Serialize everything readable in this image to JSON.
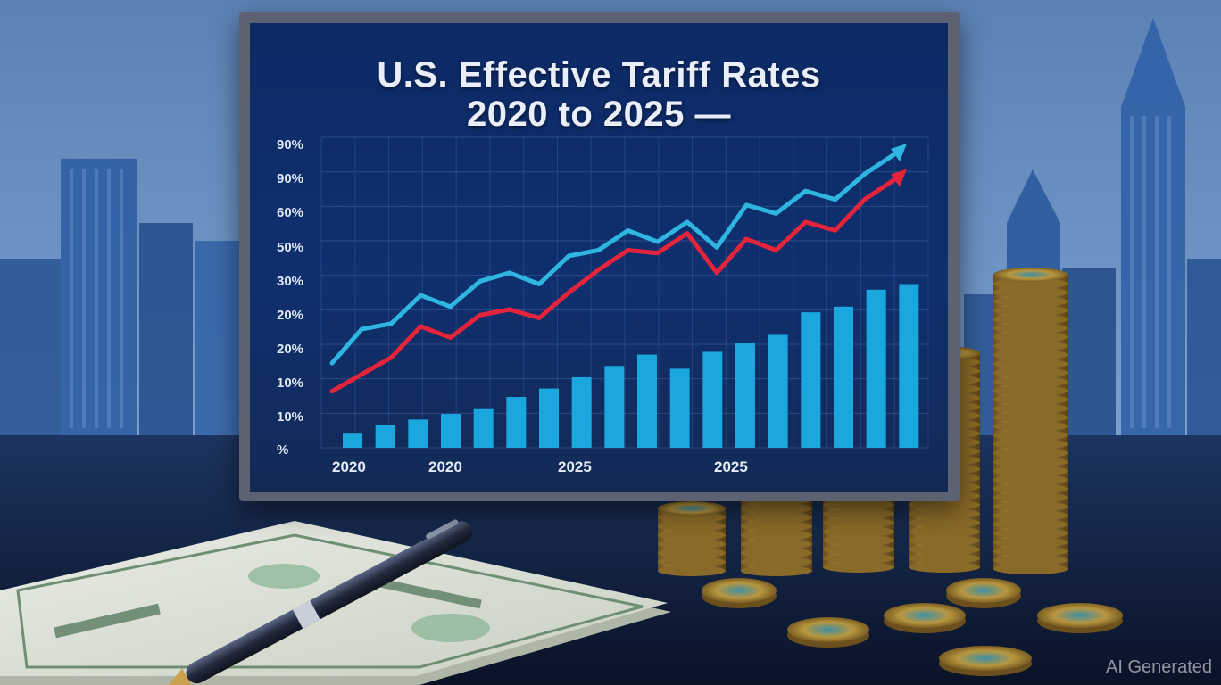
{
  "image": {
    "description_free": true,
    "screen": {
      "title_line1": "U.S. Effective Tariff Rates",
      "title_line2": "2020 to 2025 —",
      "y_axis_labels": [
        "90%",
        "90%",
        "60%",
        "50%",
        "30%",
        "20%",
        "20%",
        "10%",
        "10%",
        "%"
      ],
      "x_axis_labels": [
        "2020",
        "2020",
        "2025",
        "2025"
      ]
    },
    "watermark": "AI Generated",
    "colors": {
      "screen_bg": "#0f2f6f",
      "cyan_line": "#2fb6e0",
      "red_line": "#e3243a",
      "bar": "#19a7de",
      "coin": "#c09a45"
    }
  },
  "chart_data": {
    "type": "bar",
    "bars": [
      5,
      8,
      10,
      12,
      14,
      18,
      21,
      25,
      29,
      33,
      28,
      34,
      37,
      40,
      48,
      50,
      56,
      58
    ],
    "lines": [
      {
        "name": "cyan",
        "values": [
          30,
          42,
          44,
          54,
          50,
          59,
          62,
          58,
          68,
          70,
          77,
          73,
          80,
          71,
          86,
          83,
          91,
          88,
          97,
          104
        ]
      },
      {
        "name": "red",
        "values": [
          20,
          26,
          32,
          43,
          39,
          47,
          49,
          46,
          55,
          63,
          70,
          69,
          76,
          62,
          74,
          70,
          80,
          77,
          88,
          95
        ]
      }
    ],
    "value_range": [
      0,
      110
    ]
  }
}
